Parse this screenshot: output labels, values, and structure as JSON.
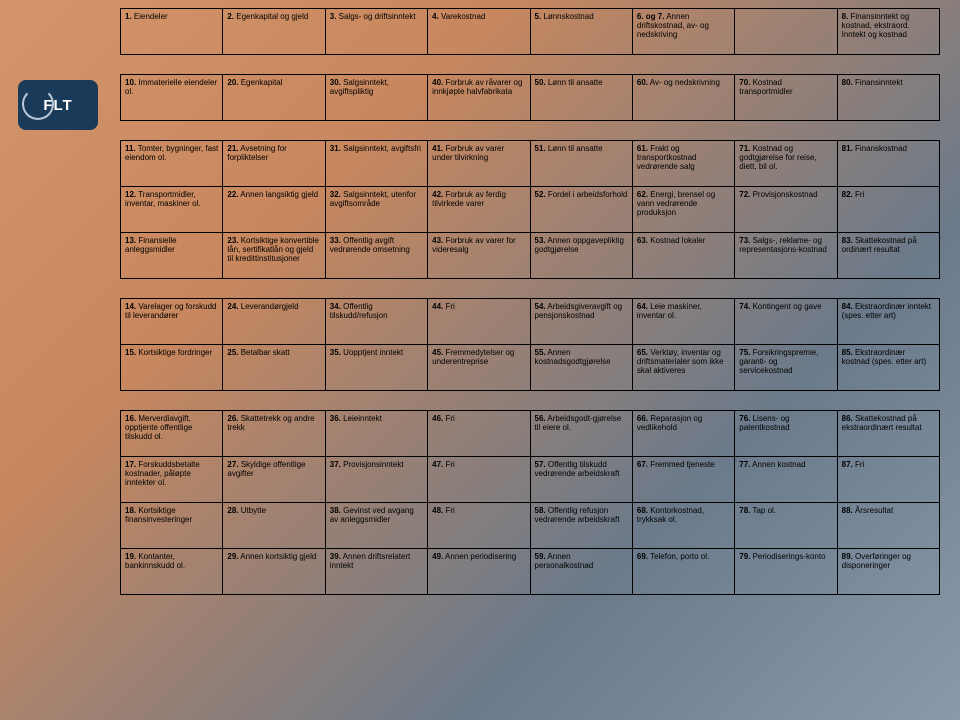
{
  "logo_text": "FLT",
  "rows": [
    [
      "1. Eiendeler",
      "2. Egenkapital og gjeld",
      "3. Salgs- og driftsinntekt",
      "4. Varekostnad",
      "5. Lønnskostnad",
      "6. og 7. Annen driftskostnad, av- og nedskriving",
      "",
      "8. Finansinntekt og kostnad, ekstraord. Inntekt og kostnad"
    ],
    [
      "10. Immaterielle eiendeler ol.",
      "20. Egenkapital",
      "30. Salgsinntekt, avgiftspliktig",
      "40. Forbruk av råvarer og innkjøpte halvfabrikata",
      "50. Lønn til ansatte",
      "60. Av- og nedskrivning",
      "70. Kostnad transportmidler",
      "80. Finansinntekt"
    ],
    [
      "11. Tomter, bygninger, fast eiendom ol.",
      "21. Avsetning for forpliktelser",
      "31. Salgsinntekt, avgiftsfri",
      "41. Forbruk av varer under tilvirkning",
      "51. Lønn til ansatte",
      "61. Frakt og transportkostnad vedrørende salg",
      "71. Kostnad og godtgjørelse for reise, diett, bil ol.",
      "81. Finanskostnad"
    ],
    [
      "12. Transportmidler, inventar, maskiner ol.",
      "22. Annen langsiktig gjeld",
      "32. Salgsinntekt, utenfor avgiftsområde",
      "42. Forbruk av ferdig tilvirkede varer",
      "52. Fordel i arbeidsforhold",
      "62. Energi, brensel og vann vedrørende produksjon",
      "72. Provisjonskostnad",
      "82. Fri"
    ],
    [
      "13. Finansielle anleggsmidler",
      "23. Kortsiktige konvertible lån, sertifikatlån og gjeld til kredittinstitusjoner",
      "33. Offentlig avgift vedrørende omsetning",
      "43. Forbruk av varer for videresalg",
      "53. Annen oppgavepliktig godtgjørelse",
      "63. Kostnad lokaler",
      "73. Salgs-, reklame- og representasjons-kostnad",
      "83. Skattekostnad på ordinært resultat"
    ],
    [
      "14. Varelager og forskudd til leverandører",
      "24. Leverandørgjeld",
      "34. Offentlig tilskudd/refusjon",
      "44. Fri",
      "54. Arbeidsgiveravgift og pensjonskostnad",
      "64. Leie maskiner, inventar ol.",
      "74. Kontingent og gave",
      "84. Ekstraordinær inntekt (spes. etter art)"
    ],
    [
      "15. Kortsiktige fordringer",
      "25. Betalbar skatt",
      "35. Uopptjent inntekt",
      "45. Fremmedytelser og underentreprise",
      "55. Annen kostnadsgodtgjørelse",
      "65. Verktøy, inventar og driftsmaterialer som ikke skal aktiveres",
      "75. Forsikringspremie, garanti- og servicekostnad",
      "85. Ekstraordinær kostnad (spes. etter art)"
    ],
    [
      "16. Merverdiavgift, opptjente offentlige tilskudd ol.",
      "26. Skattetrekk og andre trekk",
      "36. Leieinntekt",
      "46. Fri",
      "56. Arbeidsgodt-gjørelse til eiere ol.",
      "66. Reparasjon og vedlikehold",
      "76. Lisens- og patentkostnad",
      "86. Skattekostnad på ekstraordinært resultat"
    ],
    [
      "17. Forskuddsbetalte kostnader, påløpte inntekter ol.",
      "27. Skyldige offentlige avgifter",
      "37. Provisjonsinntekt",
      "47. Fri",
      "57. Offentlig tilskudd vedrørende arbeidskraft",
      "67. Fremmed tjeneste",
      "77. Annen kostnad",
      "87. Fri"
    ],
    [
      "18. Kortsiktige finansinvesteringer",
      "28. Utbytte",
      "38. Gevinst ved avgang av anleggsmidler",
      "48. Fri",
      "58. Offentlig refusjon vedrørende arbeidskraft",
      "68. Kontorkostnad, trykksak ol.",
      "78. Tap ol.",
      "88. Årsresultat"
    ],
    [
      "19. Kontanter, bankinnskudd ol.",
      "29. Annen kortsiktig gjeld",
      "39. Annen driftsrelatert inntekt",
      "49. Annen periodisering",
      "59. Annen personalkostnad",
      "69. Telefon, porto ol.",
      "79. Periodiserings-konto",
      "89. Overføringer og disponeringer"
    ]
  ],
  "spacers_after": [
    0,
    1,
    4,
    6
  ],
  "colors": {
    "border": "#000000",
    "text": "#000000",
    "logo_bg": "#1a3a5a",
    "logo_text": "#ffffff"
  },
  "font_size_pt": 8
}
